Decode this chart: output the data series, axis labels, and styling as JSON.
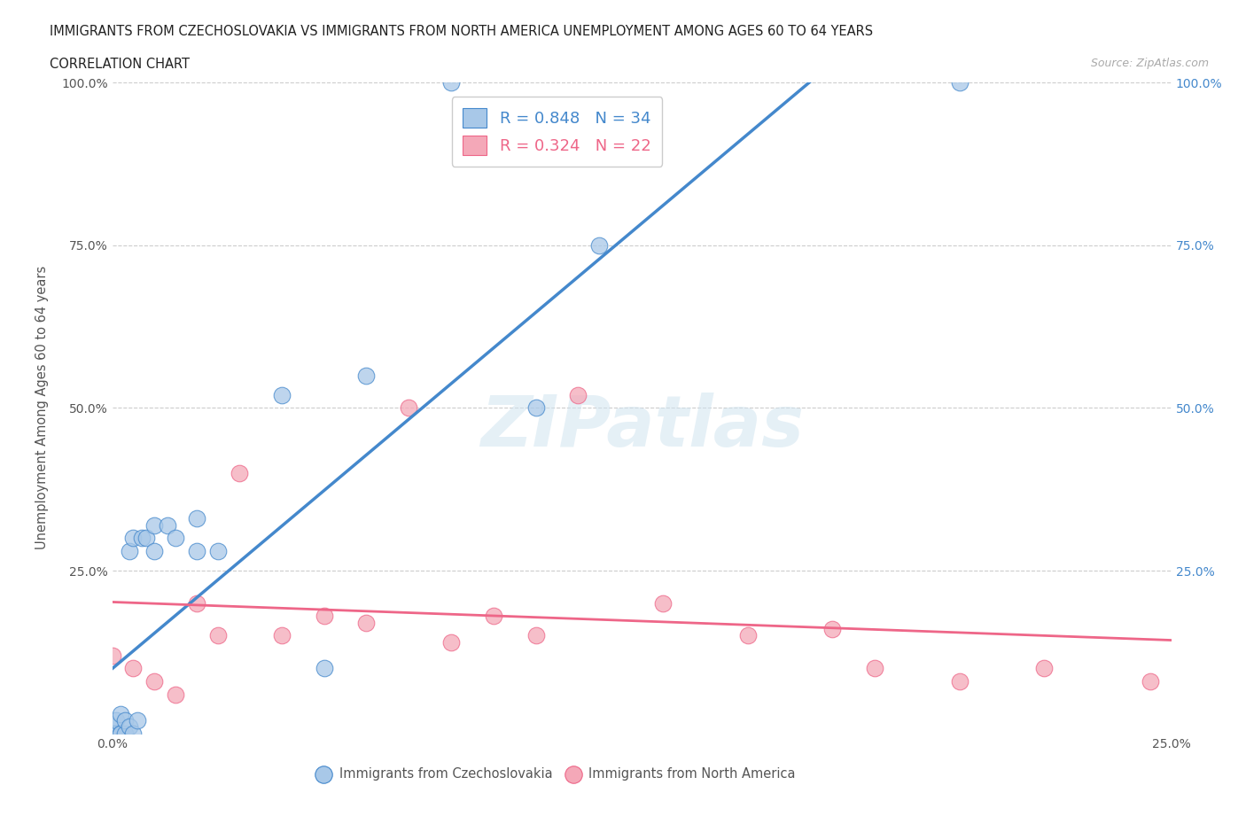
{
  "title_line1": "IMMIGRANTS FROM CZECHOSLOVAKIA VS IMMIGRANTS FROM NORTH AMERICA UNEMPLOYMENT AMONG AGES 60 TO 64 YEARS",
  "title_line2": "CORRELATION CHART",
  "source": "Source: ZipAtlas.com",
  "ylabel": "Unemployment Among Ages 60 to 64 years",
  "xlim": [
    0,
    0.25
  ],
  "ylim": [
    0,
    1.0
  ],
  "blue_R": 0.848,
  "blue_N": 34,
  "pink_R": 0.324,
  "pink_N": 22,
  "blue_color": "#a8c8e8",
  "pink_color": "#f4a8b8",
  "blue_line_color": "#4488cc",
  "pink_line_color": "#ee6688",
  "watermark": "ZIPatlas",
  "blue_x": [
    0.0,
    0.0,
    0.0,
    0.0,
    0.0,
    0.001,
    0.001,
    0.001,
    0.002,
    0.002,
    0.002,
    0.003,
    0.003,
    0.004,
    0.004,
    0.005,
    0.005,
    0.006,
    0.007,
    0.008,
    0.01,
    0.01,
    0.013,
    0.015,
    0.02,
    0.02,
    0.025,
    0.04,
    0.05,
    0.06,
    0.08,
    0.1,
    0.115,
    0.2
  ],
  "blue_y": [
    0.0,
    0.0,
    0.0,
    0.0,
    0.01,
    0.0,
    0.0,
    0.02,
    0.0,
    0.0,
    0.03,
    0.0,
    0.02,
    0.01,
    0.28,
    0.0,
    0.3,
    0.02,
    0.3,
    0.3,
    0.28,
    0.32,
    0.32,
    0.3,
    0.28,
    0.33,
    0.28,
    0.52,
    0.1,
    0.55,
    1.0,
    0.5,
    0.75,
    1.0
  ],
  "pink_x": [
    0.0,
    0.005,
    0.01,
    0.015,
    0.02,
    0.025,
    0.03,
    0.04,
    0.05,
    0.06,
    0.07,
    0.08,
    0.09,
    0.1,
    0.11,
    0.13,
    0.15,
    0.17,
    0.18,
    0.2,
    0.22,
    0.245
  ],
  "pink_y": [
    0.12,
    0.1,
    0.08,
    0.06,
    0.2,
    0.15,
    0.4,
    0.15,
    0.18,
    0.17,
    0.5,
    0.14,
    0.18,
    0.15,
    0.52,
    0.2,
    0.15,
    0.16,
    0.1,
    0.08,
    0.1,
    0.08
  ]
}
